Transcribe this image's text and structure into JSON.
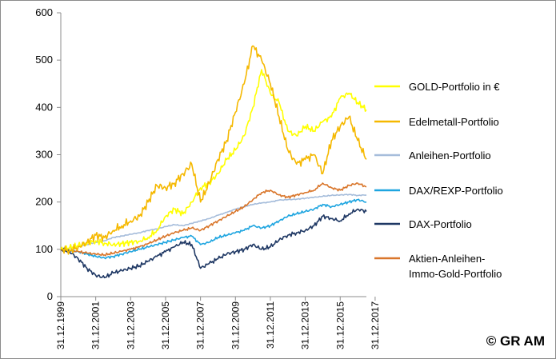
{
  "chart_data": {
    "type": "line",
    "title": "",
    "xlabel": "",
    "ylabel": "",
    "ylim": [
      0,
      600
    ],
    "yticks": [
      0,
      100,
      200,
      300,
      400,
      500,
      600
    ],
    "xtick_labels": [
      "31.12.1999",
      "31.12.2001",
      "31.12.2003",
      "31.12.2005",
      "31.12.2007",
      "31.12.2009",
      "31.12.2011",
      "31.12.2013",
      "31.12.2015",
      "31.12.2017"
    ],
    "x": [
      2000.0,
      2000.5,
      2001.0,
      2001.5,
      2002.0,
      2002.5,
      2003.0,
      2003.5,
      2004.0,
      2004.5,
      2005.0,
      2005.5,
      2006.0,
      2006.5,
      2007.0,
      2007.5,
      2008.0,
      2008.5,
      2009.0,
      2009.5,
      2010.0,
      2010.5,
      2011.0,
      2011.5,
      2012.0,
      2012.5,
      2013.0,
      2013.5,
      2014.0,
      2014.5,
      2015.0,
      2015.5,
      2016.0,
      2016.5,
      2017.0,
      2017.5
    ],
    "series": [
      {
        "name": "GOLD-Portfolio in €",
        "color": "#FFFF00",
        "width": 1.6,
        "values": [
          100,
          103,
          108,
          112,
          118,
          113,
          110,
          112,
          115,
          117,
          125,
          140,
          170,
          185,
          175,
          200,
          230,
          240,
          260,
          290,
          310,
          340,
          400,
          480,
          430,
          410,
          350,
          340,
          360,
          350,
          370,
          380,
          420,
          430,
          410,
          395
        ]
      },
      {
        "name": "Edelmetall-Portfolio",
        "color": "#F5B800",
        "width": 1.6,
        "values": [
          100,
          98,
          105,
          115,
          130,
          125,
          140,
          150,
          160,
          170,
          200,
          235,
          230,
          240,
          260,
          280,
          200,
          240,
          290,
          330,
          390,
          450,
          530,
          500,
          450,
          380,
          310,
          280,
          290,
          300,
          260,
          330,
          360,
          380,
          330,
          290
        ]
      },
      {
        "name": "Anleihen-Portfolio",
        "color": "#A6BDDB",
        "width": 1.6,
        "values": [
          100,
          102,
          106,
          110,
          115,
          118,
          125,
          128,
          132,
          135,
          140,
          143,
          148,
          152,
          150,
          155,
          160,
          165,
          172,
          178,
          185,
          190,
          195,
          198,
          200,
          204,
          205,
          206,
          208,
          210,
          212,
          214,
          215,
          216,
          214,
          215
        ]
      },
      {
        "name": "DAX/REXP-Portfolio",
        "color": "#1EA5E0",
        "width": 1.6,
        "values": [
          100,
          98,
          95,
          90,
          85,
          82,
          85,
          90,
          95,
          100,
          105,
          110,
          115,
          120,
          125,
          128,
          110,
          115,
          125,
          130,
          135,
          140,
          150,
          145,
          150,
          160,
          170,
          175,
          180,
          185,
          195,
          190,
          195,
          200,
          205,
          200
        ]
      },
      {
        "name": "DAX-Portfolio",
        "color": "#1F3864",
        "width": 1.6,
        "values": [
          100,
          95,
          80,
          60,
          45,
          40,
          50,
          55,
          60,
          65,
          75,
          85,
          95,
          105,
          115,
          110,
          60,
          70,
          80,
          90,
          95,
          100,
          110,
          100,
          105,
          120,
          130,
          135,
          140,
          150,
          170,
          165,
          160,
          175,
          185,
          180
        ]
      },
      {
        "name": "Aktien-Anleihen-Immo-Gold-Portfolio",
        "color": "#D9762B",
        "width": 1.6,
        "values": [
          100,
          98,
          95,
          92,
          90,
          88,
          92,
          96,
          100,
          105,
          112,
          120,
          128,
          135,
          140,
          145,
          140,
          150,
          160,
          170,
          180,
          190,
          205,
          220,
          225,
          215,
          210,
          215,
          220,
          225,
          240,
          230,
          225,
          235,
          240,
          232
        ]
      }
    ]
  },
  "legend": {
    "items": [
      {
        "lines": [
          "GOLD-Portfolio in €"
        ],
        "color": "#FFFF00"
      },
      {
        "lines": [
          "Edelmetall-Portfolio"
        ],
        "color": "#F5B800"
      },
      {
        "lines": [
          "Anleihen-Portfolio"
        ],
        "color": "#A6BDDB"
      },
      {
        "lines": [
          "DAX/REXP-Portfolio"
        ],
        "color": "#1EA5E0"
      },
      {
        "lines": [
          "DAX-Portfolio"
        ],
        "color": "#1F3864"
      },
      {
        "lines": [
          "Aktien-Anleihen-",
          "Immo-Gold-Portfolio"
        ],
        "color": "#D9762B"
      }
    ]
  },
  "copyright": "© GR AM"
}
